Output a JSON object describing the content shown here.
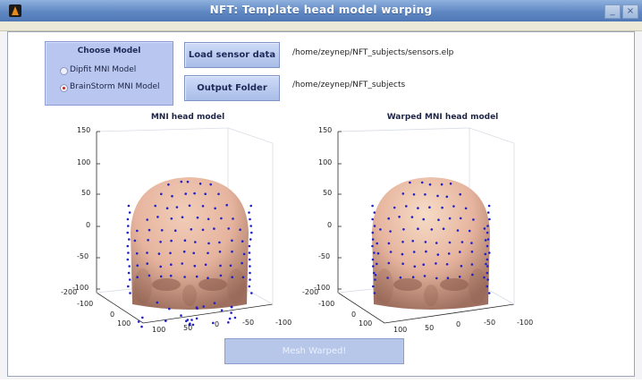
{
  "window": {
    "title": "NFT: Template head model warping",
    "minimize": "_",
    "close": "×"
  },
  "choose_model": {
    "title": "Choose Model",
    "options": [
      {
        "label": "Dipfit MNI Model",
        "selected": false
      },
      {
        "label": "BrainStorm MNI Model",
        "selected": true
      }
    ]
  },
  "buttons": {
    "load_sensor": "Load sensor data",
    "output_folder": "Output Folder",
    "mesh_warped": "Mesh Warped!"
  },
  "paths": {
    "sensor_file": "/home/zeynep/NFT_subjects/sensors.elp",
    "output_dir": "/home/zeynep/NFT_subjects"
  },
  "plots": [
    {
      "title": "MNI head model",
      "z_ticks": [
        "150",
        "100",
        "50",
        "0",
        "-50",
        "-100"
      ],
      "y_ticks": [
        "-200",
        "-100",
        "0",
        "100"
      ],
      "x_ticks": [
        "100",
        "50",
        "0",
        "-50",
        "-100"
      ]
    },
    {
      "title": "Warped MNI head model",
      "z_ticks": [
        "150",
        "100",
        "50",
        "0",
        "-50",
        "-100"
      ],
      "y_ticks": [
        "-200",
        "-100",
        "0",
        "100"
      ],
      "x_ticks": [
        "100",
        "50",
        "0",
        "-50",
        "-100"
      ]
    }
  ],
  "colors": {
    "accent": "#5f87c2",
    "sensor": "#2020c8",
    "skin": "#e6b49e"
  }
}
